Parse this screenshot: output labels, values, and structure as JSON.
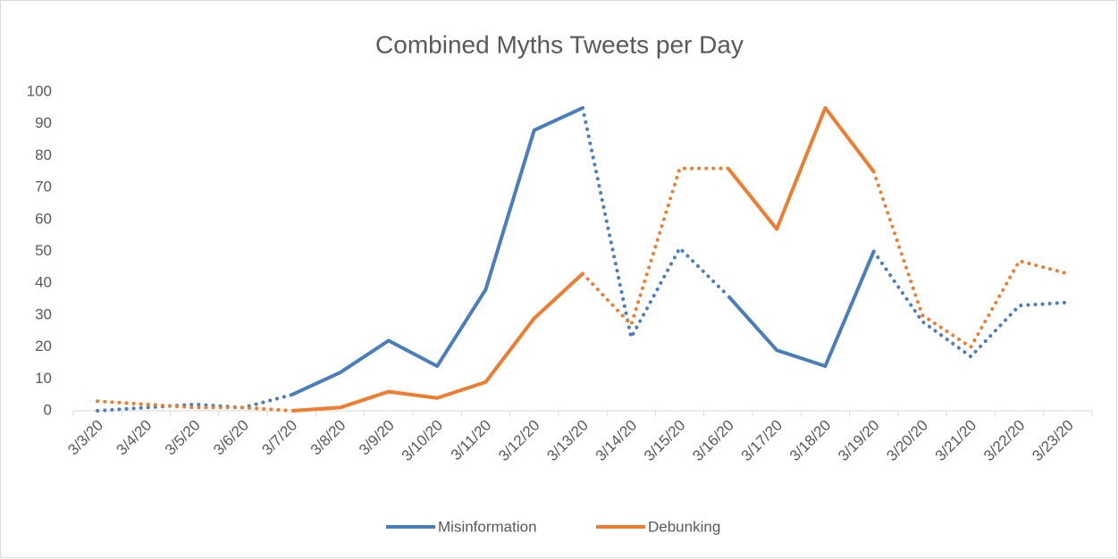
{
  "chart_data": {
    "type": "line",
    "title": "Combined Myths Tweets per Day",
    "categories": [
      "3/3/20",
      "3/4/20",
      "3/5/20",
      "3/6/20",
      "3/7/20",
      "3/8/20",
      "3/9/20",
      "3/10/20",
      "3/11/20",
      "3/12/20",
      "3/13/20",
      "3/14/20",
      "3/15/20",
      "3/16/20",
      "3/17/20",
      "3/18/20",
      "3/19/20",
      "3/20/20",
      "3/21/20",
      "3/22/20",
      "3/23/20"
    ],
    "series": [
      {
        "name": "Misinformation",
        "color": "#4a7ebb",
        "values": [
          0,
          1,
          2,
          1,
          5,
          12,
          22,
          14,
          38,
          88,
          95,
          23,
          51,
          36,
          19,
          14,
          50,
          28,
          17,
          33,
          34
        ],
        "segment_styles": [
          "dotted",
          "dotted",
          "dotted",
          "dotted",
          "solid",
          "solid",
          "solid",
          "solid",
          "solid",
          "solid",
          "dotted",
          "dotted",
          "dotted",
          "solid",
          "solid",
          "solid",
          "dotted",
          "dotted",
          "dotted",
          "dotted"
        ]
      },
      {
        "name": "Debunking",
        "color": "#ed7d31",
        "values": [
          3,
          2,
          1,
          1,
          0,
          1,
          6,
          4,
          9,
          29,
          43,
          27,
          76,
          76,
          57,
          95,
          75,
          30,
          20,
          47,
          43
        ],
        "segment_styles": [
          "dotted",
          "dotted",
          "dotted",
          "dotted",
          "solid",
          "solid",
          "solid",
          "solid",
          "solid",
          "solid",
          "dotted",
          "dotted",
          "dotted",
          "solid",
          "solid",
          "solid",
          "dotted",
          "dotted",
          "dotted",
          "dotted"
        ]
      }
    ],
    "ylim": [
      0,
      100
    ],
    "yticks": [
      0,
      10,
      20,
      30,
      40,
      50,
      60,
      70,
      80,
      90,
      100
    ],
    "grid": false,
    "legend": "bottom"
  }
}
